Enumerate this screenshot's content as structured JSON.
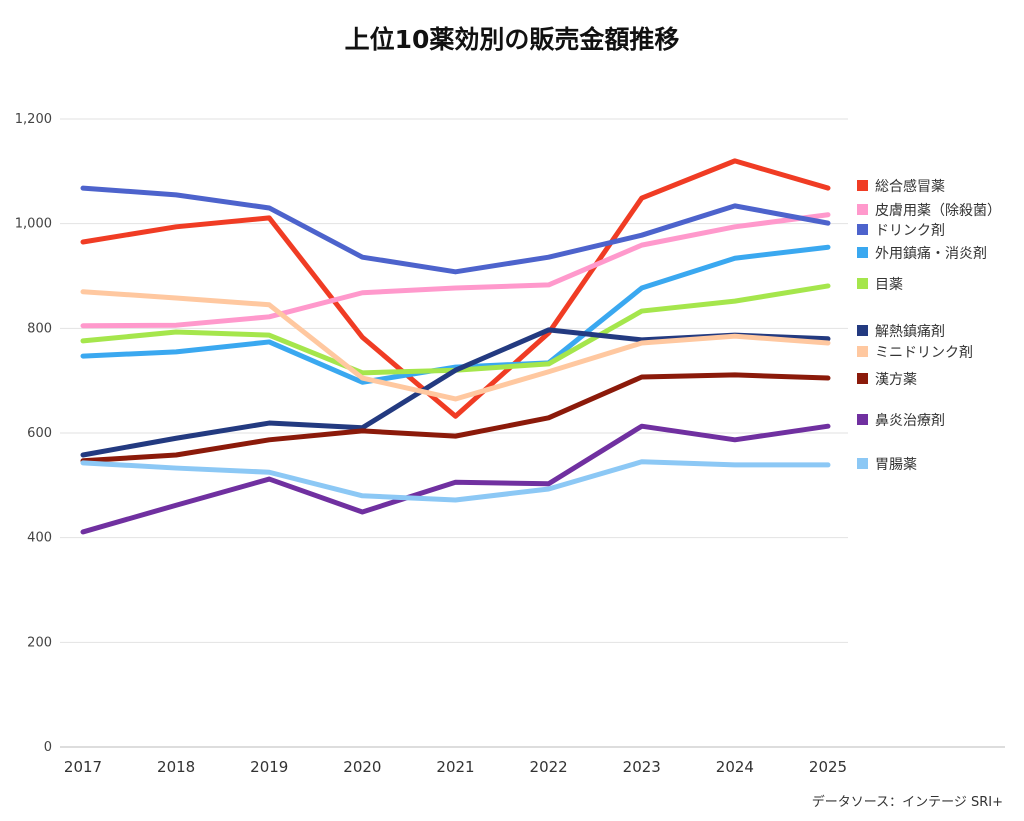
{
  "chart_data": {
    "type": "line",
    "title": "上位10薬効別の販売金額推移",
    "xlabel": "",
    "ylabel": "",
    "ylim": [
      0,
      1200
    ],
    "yticks": [
      0,
      200,
      400,
      600,
      800,
      1000,
      1200
    ],
    "ytick_labels": [
      "0",
      "200",
      "400",
      "600",
      "800",
      "1,000",
      "1,200"
    ],
    "x": [
      "2017",
      "2018",
      "2019",
      "2020",
      "2021",
      "2022",
      "2023",
      "2024",
      "2025"
    ],
    "grid": true,
    "legend_position": "right",
    "series": [
      {
        "name": "総合感冒薬",
        "color": "#F03C24",
        "values": [
          965,
          994,
          1011,
          783,
          632,
          791,
          1049,
          1120,
          1068
        ]
      },
      {
        "name": "皮膚用薬（除殺菌）",
        "color": "#FF99CC",
        "values": [
          805,
          806,
          822,
          868,
          877,
          883,
          959,
          994,
          1017
        ]
      },
      {
        "name": "ドリンク剤",
        "color": "#4D63CC",
        "values": [
          1068,
          1055,
          1030,
          936,
          908,
          936,
          978,
          1034,
          1001
        ]
      },
      {
        "name": "外用鎮痛・消炎剤",
        "color": "#3AA8F0",
        "values": [
          747,
          755,
          774,
          697,
          726,
          734,
          877,
          934,
          955
        ]
      },
      {
        "name": "目薬",
        "color": "#A5E64C",
        "values": [
          776,
          793,
          787,
          715,
          720,
          732,
          833,
          852,
          881
        ]
      },
      {
        "name": "解熱鎮痛剤",
        "color": "#233A80",
        "values": [
          558,
          590,
          619,
          610,
          720,
          797,
          778,
          787,
          780
        ]
      },
      {
        "name": "ミニドリンク剤",
        "color": "#FFC8A0",
        "values": [
          870,
          858,
          845,
          705,
          665,
          717,
          772,
          785,
          772
        ]
      },
      {
        "name": "漢方薬",
        "color": "#8B1A0A",
        "values": [
          547,
          558,
          587,
          604,
          594,
          629,
          707,
          711,
          705
        ]
      },
      {
        "name": "鼻炎治療剤",
        "color": "#7030A0",
        "values": [
          411,
          462,
          512,
          449,
          506,
          503,
          613,
          587,
          613
        ]
      },
      {
        "name": "胃腸薬",
        "color": "#8CC8F5",
        "values": [
          543,
          533,
          525,
          480,
          472,
          493,
          545,
          539,
          539
        ]
      }
    ],
    "source": "データソース：インテージ SRI+"
  }
}
